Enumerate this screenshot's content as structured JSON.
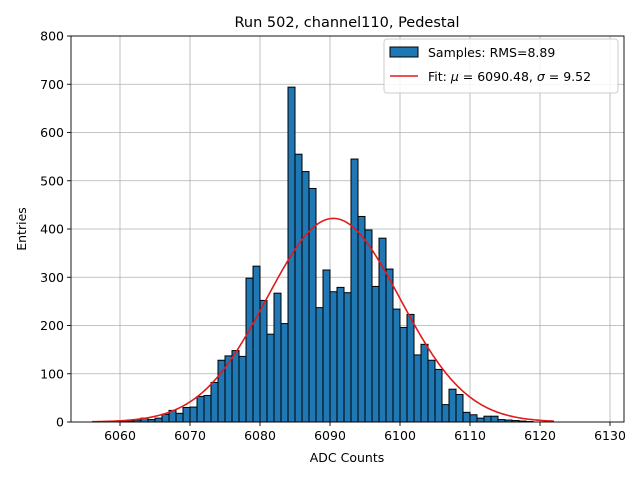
{
  "chart_data": {
    "type": "bar",
    "title": "Run 502, channel110, Pedestal",
    "xlabel": "ADC Counts",
    "ylabel": "Entries",
    "xlim": [
      6053,
      6132
    ],
    "ylim": [
      0,
      800
    ],
    "xticks": [
      6060,
      6070,
      6080,
      6090,
      6100,
      6110,
      6120,
      6130
    ],
    "yticks": [
      0,
      100,
      200,
      300,
      400,
      500,
      600,
      700,
      800
    ],
    "grid": true,
    "legend_position": "top-right",
    "bin_width": 1,
    "histogram": {
      "name": "Samples: RMS=8.89",
      "color": "#1f77b4",
      "edge_color": "#000000",
      "bin_edges_start": 6058,
      "counts": [
        0,
        0,
        1,
        2,
        4,
        8,
        5,
        8,
        16,
        24,
        18,
        30,
        31,
        53,
        55,
        82,
        128,
        137,
        148,
        136,
        298,
        323,
        252,
        182,
        267,
        204,
        694,
        555,
        519,
        484,
        237,
        315,
        270,
        279,
        268,
        545,
        426,
        398,
        281,
        381,
        317,
        234,
        196,
        223,
        139,
        161,
        128,
        109,
        36,
        68,
        57,
        20,
        15,
        8,
        12,
        12,
        5,
        4,
        3,
        2,
        1,
        0
      ]
    },
    "fit": {
      "name": "Fit: μ = 6090.48, σ = 9.52",
      "label_prefix": "Fit: ",
      "label_mu": "μ",
      "label_mid": " = 6090.48, ",
      "label_sigma": "σ",
      "label_suffix": " = 9.52",
      "color": "#e31a1c",
      "mu": 6090.48,
      "sigma": 9.52,
      "amplitude": 422,
      "x_range": [
        6056,
        6122
      ]
    }
  }
}
